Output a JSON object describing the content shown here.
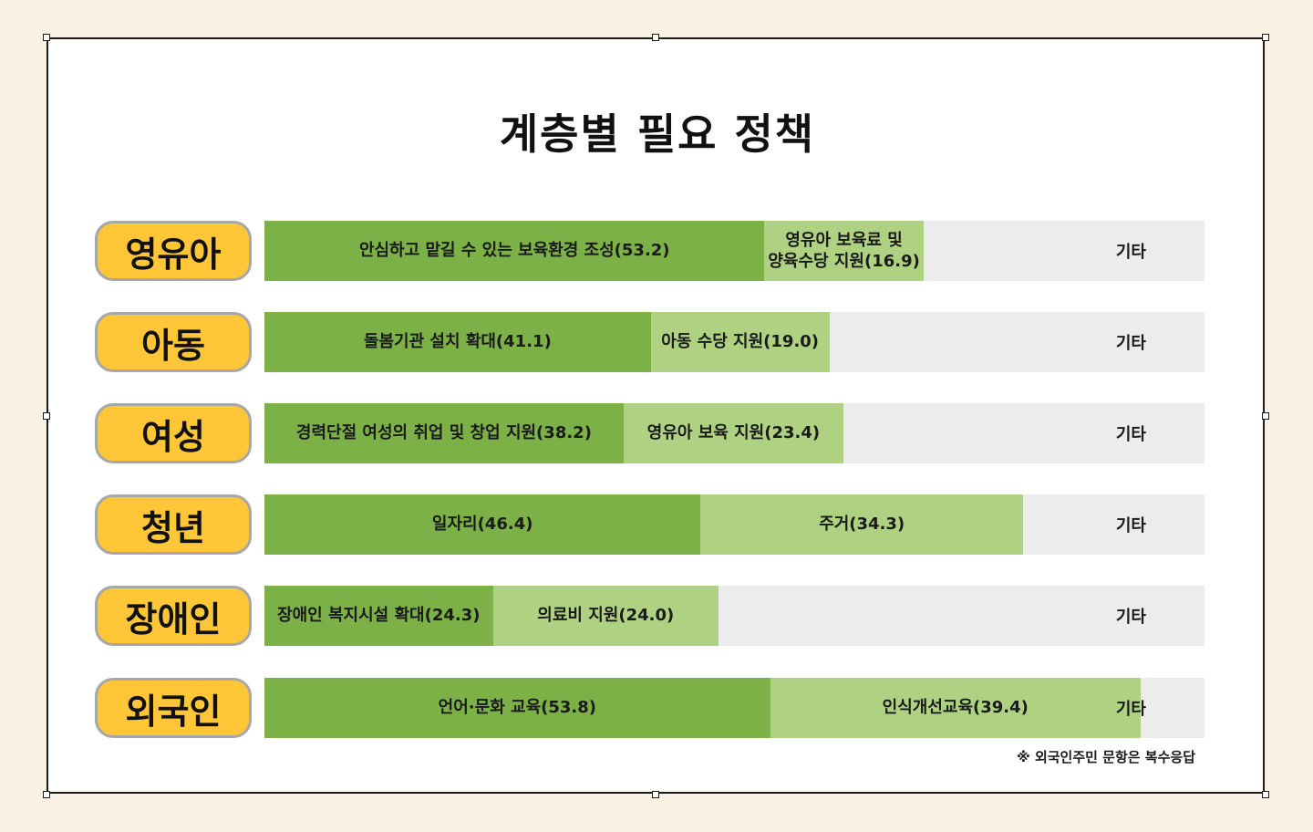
{
  "chart_data": {
    "type": "bar",
    "stacked": true,
    "orientation": "horizontal",
    "title": "계층별 필요 정책",
    "categories": [
      "영유아",
      "아동",
      "여성",
      "청년",
      "장애인",
      "외국인"
    ],
    "remainder_label": "기타",
    "rows": [
      {
        "group": "영유아",
        "segments": [
          {
            "label": "안심하고 맡길 수 있는 보육환경 조성(53.2)",
            "value": 53.2
          },
          {
            "label": "영유아 보육료 및\n양육수당 지원(16.9)",
            "value": 16.9
          }
        ]
      },
      {
        "group": "아동",
        "segments": [
          {
            "label": "돌봄기관 설치 확대(41.1)",
            "value": 41.1
          },
          {
            "label": "아동 수당 지원(19.0)",
            "value": 19.0
          }
        ]
      },
      {
        "group": "여성",
        "segments": [
          {
            "label": "경력단절 여성의 취업 및 창업 지원(38.2)",
            "value": 38.2
          },
          {
            "label": "영유아 보육 지원(23.4)",
            "value": 23.4
          }
        ]
      },
      {
        "group": "청년",
        "segments": [
          {
            "label": "일자리(46.4)",
            "value": 46.4
          },
          {
            "label": "주거(34.3)",
            "value": 34.3
          }
        ]
      },
      {
        "group": "장애인",
        "segments": [
          {
            "label": "장애인 복지시설 확대(24.3)",
            "value": 24.3
          },
          {
            "label": "의료비 지원(24.0)",
            "value": 24.0
          }
        ]
      },
      {
        "group": "외국인",
        "segments": [
          {
            "label": "언어·문화 교육(53.8)",
            "value": 53.8
          },
          {
            "label": "인식개선교육(39.4)",
            "value": 39.4
          }
        ]
      }
    ],
    "xlim": [
      0,
      100
    ],
    "footnote": "※ 외국인주민 문항은 복수응답",
    "colors": {
      "primary": "#7cb147",
      "secondary": "#afd282",
      "remainder": "#ececec",
      "category_pill": "#ffc637",
      "pill_border": "#a7a7a7",
      "background": "#fbf0e4"
    }
  }
}
